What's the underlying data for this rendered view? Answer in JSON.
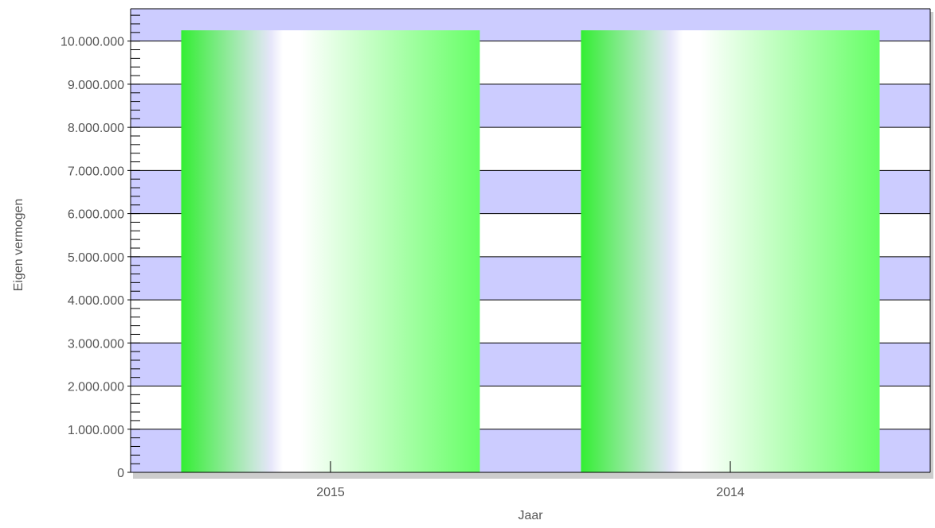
{
  "chart_data": {
    "type": "bar",
    "categories": [
      "2015",
      "2014"
    ],
    "values": [
      10250000,
      10250000
    ],
    "xlabel": "Jaar",
    "ylabel": "Eigen vermogen",
    "ylim": [
      0,
      10750000
    ],
    "yticks": [
      0,
      1000000,
      2000000,
      3000000,
      4000000,
      5000000,
      6000000,
      7000000,
      8000000,
      9000000,
      10000000
    ],
    "ytick_labels": [
      "0",
      "1.000.000",
      "2.000.000",
      "3.000.000",
      "4.000.000",
      "5.000.000",
      "6.000.000",
      "7.000.000",
      "8.000.000",
      "9.000.000",
      "10.000.000"
    ],
    "grid": true,
    "legend": "none",
    "colors": {
      "band": "#ccccff",
      "bar_edge": "#33ee33",
      "bar_light": "#e6e6fa",
      "bar_white": "#ffffff",
      "bar_bright": "#66ff66",
      "gridline": "#000000",
      "shadow": "#cccccc"
    }
  }
}
